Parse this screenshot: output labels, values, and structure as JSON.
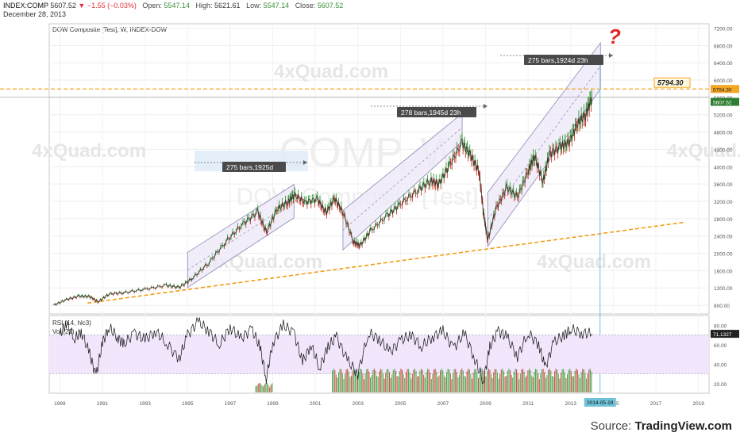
{
  "header": {
    "symbol": "INDEX:COMP",
    "last": "5607.52",
    "change": "▼ −1.55 (−0.03%)",
    "open_label": "Open:",
    "open": "5547.14",
    "high_label": "High:",
    "high": "5621.61",
    "low_label": "Low:",
    "low": "5547.14",
    "close_label": "Close:",
    "close": "5607.52",
    "date": "December 28, 2013"
  },
  "pane_title": "DOW Composite [Test], W, INDEX-DOW",
  "watermarks": [
    "4xQuad.com",
    "4xQuad.com",
    "4xQuad.com",
    "4xQuad.com",
    "4xQuad.com"
  ],
  "big_watermark": {
    "line1": "COMP, W",
    "line2": "DOW Composite [Test]"
  },
  "question_mark": "?",
  "annotations": [
    "275 bars,1925d",
    "278 bars,1945d 23h",
    "275 bars,1924d 23h"
  ],
  "level_label": "5794.30",
  "axis_labels": {
    "level": "5794.30",
    "last": "5607.52"
  },
  "rsi_title": "RSI (14, hlc3)",
  "vol_title": "Vol (20)",
  "rsi_value": "71.1327",
  "crosshair_date": "2014-05-19",
  "source": {
    "prefix": "Source: ",
    "brand": "TradingView.com"
  },
  "colors": {
    "level_line": "#f5a623",
    "support_line": "#f39c12",
    "channel_fill": "#ece8f7",
    "channel_border": "#8b86b8",
    "up_bar": "#3a9a3a",
    "down_bar": "#c0392b",
    "rsi_band": "#f1e6fb",
    "crosshair": "#6fc3d9",
    "last_tag": "#2e7d32",
    "level_tag": "#f5a623"
  },
  "chart_data": {
    "type": "line",
    "title": "DOW Composite [Test], W, INDEX-DOW",
    "x_ticks": [
      "1989",
      "1991",
      "1993",
      "1995",
      "1997",
      "1999",
      "2001",
      "2003",
      "2005",
      "2007",
      "2009",
      "2011",
      "2013",
      "2015",
      "2017",
      "2019"
    ],
    "y_ticks": [
      "800.00",
      "1200.00",
      "1600.00",
      "2000.00",
      "2400.00",
      "2800.00",
      "3200.00",
      "3600.00",
      "4000.00",
      "4400.00",
      "4800.00",
      "5200.00",
      "5600.00",
      "6000.00",
      "6400.00",
      "6800.00",
      "7200.00"
    ],
    "ylim": [
      600,
      7300
    ],
    "xlim": [
      1988.5,
      2019.5
    ],
    "price_series": {
      "name": "COMP",
      "x": [
        1988.7,
        1989.3,
        1989.9,
        1990.4,
        1990.8,
        1991.3,
        1992,
        1993,
        1994,
        1994.6,
        1995.2,
        1996,
        1996.8,
        1997.6,
        1998.3,
        1998.7,
        1999.2,
        1999.7,
        2000,
        2000.5,
        2001.1,
        2001.5,
        2001.9,
        2002.3,
        2002.8,
        2003.1,
        2003.6,
        2004.4,
        2005,
        2005.8,
        2006.4,
        2006.8,
        2007.3,
        2007.9,
        2008.3,
        2008.7,
        2008.9,
        2009.1,
        2009.5,
        2010,
        2010.5,
        2011,
        2011.3,
        2011.7,
        2012,
        2012.5,
        2012.9,
        2013.3,
        2013.7,
        2013.99
      ],
      "y": [
        800,
        930,
        1010,
        1000,
        880,
        1060,
        1090,
        1170,
        1260,
        1210,
        1410,
        1780,
        2270,
        2680,
        2960,
        2480,
        3020,
        3180,
        3350,
        3180,
        3250,
        2930,
        3270,
        2950,
        2260,
        2180,
        2520,
        2880,
        3140,
        3450,
        3680,
        3600,
        4030,
        4550,
        4260,
        3880,
        2950,
        2300,
        3050,
        3520,
        3300,
        3900,
        4250,
        3650,
        4300,
        4450,
        4550,
        4980,
        5200,
        5607.52
      ]
    },
    "level_line": 5794.3,
    "last_price": 5607.52,
    "support_line": {
      "x": [
        1990.3,
        2018.4
      ],
      "y": [
        850,
        2720
      ]
    },
    "channels": [
      {
        "x_start": 1995.0,
        "x_end": 2000.0,
        "lower": [
          1210,
          2820
        ],
        "upper": [
          2020,
          3590
        ],
        "label": "275 bars,1925d"
      },
      {
        "x_start": 2002.3,
        "x_end": 2007.9,
        "lower": [
          2080,
          4580
        ],
        "upper": [
          2990,
          5230
        ],
        "label": "278 bars,1945d 23h"
      },
      {
        "x_start": 2009.1,
        "x_end": 2014.4,
        "lower": [
          2160,
          5790
        ],
        "upper": [
          3400,
          6860
        ],
        "label": "275 bars,1924d 23h"
      }
    ],
    "rsi": {
      "y_ticks": [
        "20.00",
        "40.00",
        "60.00",
        "80.00"
      ],
      "ylim": [
        10,
        90
      ],
      "last_value": 71.1327,
      "bands": [
        30,
        70
      ],
      "x": [
        1989,
        1989.3,
        1989.7,
        1990,
        1990.4,
        1990.7,
        1991,
        1991.3,
        1991.7,
        1992,
        1992.5,
        1993,
        1993.5,
        1994,
        1994.6,
        1995,
        1995.5,
        1996,
        1996.5,
        1997,
        1997.5,
        1998,
        1998.4,
        1998.7,
        1999,
        1999.5,
        2000,
        2000.4,
        2000.8,
        2001.2,
        2001.6,
        2002,
        2002.5,
        2003,
        2003.5,
        2004,
        2004.5,
        2005,
        2005.5,
        2006,
        2006.5,
        2007,
        2007.5,
        2008,
        2008.5,
        2008.9,
        2009.2,
        2009.6,
        2010,
        2010.5,
        2011,
        2011.5,
        2011.8,
        2012.2,
        2012.7,
        2013,
        2013.5,
        2013.99
      ],
      "y": [
        70,
        82,
        66,
        74,
        50,
        28,
        62,
        78,
        68,
        60,
        72,
        65,
        74,
        62,
        45,
        70,
        84,
        74,
        60,
        78,
        66,
        76,
        58,
        25,
        62,
        80,
        72,
        42,
        60,
        36,
        58,
        68,
        44,
        30,
        72,
        66,
        52,
        64,
        70,
        58,
        68,
        74,
        56,
        72,
        45,
        22,
        58,
        74,
        68,
        48,
        72,
        60,
        36,
        62,
        70,
        76,
        72,
        71.13
      ]
    },
    "volume": {
      "note": "bars",
      "segments": [
        {
          "x_start": 1998.2,
          "x_end": 1999.0,
          "height": 12
        },
        {
          "x_start": 2001.8,
          "x_end": 2013.99,
          "height": 30
        }
      ]
    },
    "crosshair": {
      "x": 2014.38
    }
  }
}
